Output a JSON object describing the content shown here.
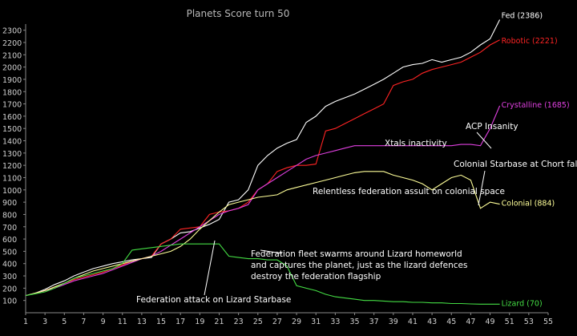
{
  "chart_data": {
    "type": "line",
    "title": "Planets Score turn 50",
    "xlim": [
      1,
      55
    ],
    "ylim": [
      0,
      2350
    ],
    "x_ticks": [
      1,
      3,
      5,
      7,
      9,
      11,
      13,
      15,
      17,
      19,
      21,
      23,
      25,
      27,
      29,
      31,
      33,
      35,
      37,
      39,
      41,
      43,
      45,
      47,
      49,
      51,
      53,
      55
    ],
    "y_ticks": [
      100,
      200,
      300,
      400,
      500,
      600,
      700,
      800,
      900,
      1000,
      1100,
      1200,
      1300,
      1400,
      1500,
      1600,
      1700,
      1800,
      1900,
      2000,
      2100,
      2200,
      2300
    ],
    "grid": false,
    "x": [
      1,
      2,
      3,
      4,
      5,
      6,
      7,
      8,
      9,
      10,
      11,
      12,
      13,
      14,
      15,
      16,
      17,
      18,
      19,
      20,
      21,
      22,
      23,
      24,
      25,
      26,
      27,
      28,
      29,
      30,
      31,
      32,
      33,
      34,
      35,
      36,
      37,
      38,
      39,
      40,
      41,
      42,
      43,
      44,
      45,
      46,
      47,
      48,
      49,
      50
    ],
    "series": [
      {
        "name": "Fed",
        "label": "Fed (2386)",
        "color": "#ffffff",
        "values": [
          140,
          160,
          190,
          230,
          260,
          300,
          330,
          360,
          380,
          400,
          415,
          430,
          440,
          450,
          560,
          600,
          650,
          660,
          690,
          720,
          760,
          900,
          920,
          1000,
          1200,
          1280,
          1340,
          1380,
          1410,
          1550,
          1600,
          1680,
          1720,
          1750,
          1780,
          1820,
          1860,
          1900,
          1950,
          2000,
          2020,
          2030,
          2060,
          2040,
          2060,
          2080,
          2120,
          2180,
          2230,
          2386
        ]
      },
      {
        "name": "Robotic",
        "label": "Robotic (2221)",
        "color": "#ff2424",
        "values": [
          140,
          160,
          180,
          210,
          240,
          270,
          290,
          310,
          330,
          360,
          390,
          420,
          440,
          460,
          560,
          600,
          680,
          690,
          700,
          800,
          820,
          830,
          850,
          900,
          1000,
          1050,
          1150,
          1180,
          1200,
          1200,
          1210,
          1480,
          1500,
          1540,
          1580,
          1620,
          1660,
          1700,
          1850,
          1880,
          1900,
          1950,
          1980,
          2000,
          2020,
          2040,
          2080,
          2120,
          2180,
          2221
        ]
      },
      {
        "name": "Crystalline",
        "label": "Crystalline (1685)",
        "color": "#e040e0",
        "values": [
          140,
          160,
          180,
          200,
          230,
          260,
          280,
          300,
          320,
          350,
          380,
          410,
          440,
          460,
          500,
          550,
          600,
          650,
          700,
          750,
          800,
          830,
          850,
          880,
          1000,
          1050,
          1100,
          1150,
          1200,
          1250,
          1280,
          1300,
          1320,
          1340,
          1360,
          1360,
          1360,
          1360,
          1360,
          1360,
          1360,
          1360,
          1360,
          1360,
          1360,
          1370,
          1370,
          1360,
          1500,
          1685
        ]
      },
      {
        "name": "Colonial",
        "label": "Colonial (884)",
        "color": "#ffff99",
        "values": [
          140,
          160,
          180,
          210,
          240,
          280,
          310,
          340,
          360,
          380,
          400,
          420,
          440,
          460,
          480,
          500,
          540,
          600,
          680,
          750,
          820,
          880,
          900,
          920,
          940,
          950,
          960,
          1000,
          1020,
          1040,
          1060,
          1080,
          1100,
          1120,
          1140,
          1150,
          1150,
          1150,
          1120,
          1100,
          1080,
          1050,
          1000,
          1050,
          1100,
          1120,
          1080,
          850,
          900,
          884
        ]
      },
      {
        "name": "Lizard",
        "label": "Lizard (70)",
        "color": "#44dd44",
        "values": [
          140,
          155,
          170,
          200,
          240,
          280,
          300,
          320,
          340,
          360,
          400,
          510,
          520,
          530,
          540,
          550,
          560,
          560,
          560,
          560,
          560,
          460,
          450,
          440,
          440,
          430,
          430,
          380,
          220,
          200,
          180,
          150,
          130,
          120,
          110,
          100,
          100,
          95,
          90,
          90,
          85,
          85,
          80,
          80,
          75,
          75,
          72,
          70,
          70,
          70
        ]
      }
    ],
    "annotations": [
      {
        "text": "ACP Insanity"
      },
      {
        "text": "Xtals inactivity"
      },
      {
        "text": "Colonial Starbase at Chort falls"
      },
      {
        "text": "Relentless federation assult on colonial space"
      },
      {
        "text": "Federation fleet swarms around Lizard homeworld"
      },
      {
        "text": "and captures the planet, just as the lizard defences"
      },
      {
        "text": "destroy the federation flagship"
      },
      {
        "text": "Federation attack on Lizard Starbase"
      }
    ]
  }
}
